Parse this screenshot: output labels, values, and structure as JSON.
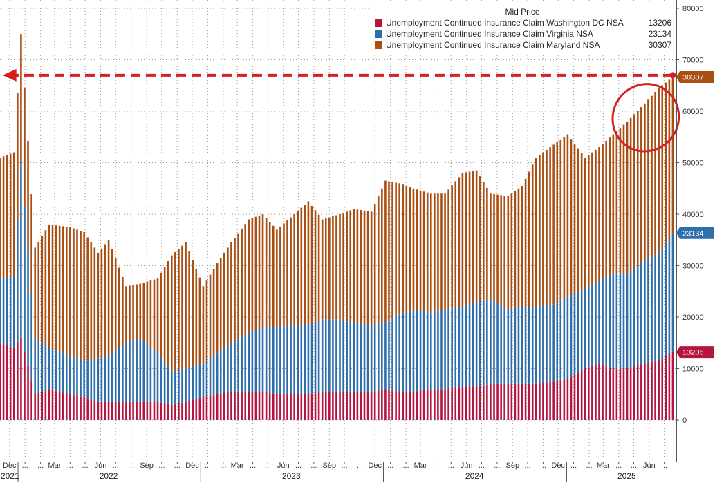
{
  "chart_data": {
    "type": "bar",
    "stacked": true,
    "legend": {
      "title": "Mid Price",
      "placement": "top-right",
      "entries": [
        {
          "name": "Unemployment Continued Insurance Claim Washington DC NSA",
          "value": "13206",
          "color": "#b4163f"
        },
        {
          "name": "Unemployment Continued Insurance Claim Virginia NSA",
          "value": "23134",
          "color": "#2f6ead"
        },
        {
          "name": "Unemployment Continued Insurance Claim Maryland NSA",
          "value": "30307",
          "color": "#a94f13"
        }
      ]
    },
    "last_value_badges": [
      {
        "label": "30307",
        "value": 66647,
        "color": "#a94f13"
      },
      {
        "label": "23134",
        "value": 36340,
        "color": "#2f6ead"
      },
      {
        "label": "13206",
        "value": 13206,
        "color": "#b4163f"
      }
    ],
    "y_axis": {
      "position": "right",
      "ylim": [
        -10000,
        82000
      ],
      "ticks": [
        0,
        10000,
        20000,
        30000,
        40000,
        50000,
        60000,
        70000,
        80000
      ],
      "tick_labels": [
        "0",
        "10000",
        "20000",
        "30000",
        "40000",
        "50000",
        "60000",
        "70000",
        "80000"
      ]
    },
    "x_axis": {
      "start": "2021-11-26",
      "end": "2025-08-08",
      "month_ticks": [
        {
          "date": "2021-12-15",
          "label": "Dec"
        },
        {
          "date": "2022-01-15",
          "label": "..."
        },
        {
          "date": "2022-02-15",
          "label": "..."
        },
        {
          "date": "2022-03-15",
          "label": "Mar"
        },
        {
          "date": "2022-04-15",
          "label": "..."
        },
        {
          "date": "2022-05-15",
          "label": "..."
        },
        {
          "date": "2022-06-15",
          "label": "Jun"
        },
        {
          "date": "2022-07-15",
          "label": "..."
        },
        {
          "date": "2022-08-15",
          "label": "..."
        },
        {
          "date": "2022-09-15",
          "label": "Sep"
        },
        {
          "date": "2022-10-15",
          "label": "..."
        },
        {
          "date": "2022-11-15",
          "label": "..."
        },
        {
          "date": "2022-12-15",
          "label": "Dec"
        },
        {
          "date": "2023-01-15",
          "label": "..."
        },
        {
          "date": "2023-02-15",
          "label": "..."
        },
        {
          "date": "2023-03-15",
          "label": "Mar"
        },
        {
          "date": "2023-04-15",
          "label": "..."
        },
        {
          "date": "2023-05-15",
          "label": "..."
        },
        {
          "date": "2023-06-15",
          "label": "Jun"
        },
        {
          "date": "2023-07-15",
          "label": "..."
        },
        {
          "date": "2023-08-15",
          "label": "..."
        },
        {
          "date": "2023-09-15",
          "label": "Sep"
        },
        {
          "date": "2023-10-15",
          "label": "..."
        },
        {
          "date": "2023-11-15",
          "label": "..."
        },
        {
          "date": "2023-12-15",
          "label": "Dec"
        },
        {
          "date": "2024-01-15",
          "label": "..."
        },
        {
          "date": "2024-02-15",
          "label": "..."
        },
        {
          "date": "2024-03-15",
          "label": "Mar"
        },
        {
          "date": "2024-04-15",
          "label": "..."
        },
        {
          "date": "2024-05-15",
          "label": "..."
        },
        {
          "date": "2024-06-15",
          "label": "Jun"
        },
        {
          "date": "2024-07-15",
          "label": "..."
        },
        {
          "date": "2024-08-15",
          "label": "..."
        },
        {
          "date": "2024-09-15",
          "label": "Sep"
        },
        {
          "date": "2024-10-15",
          "label": "..."
        },
        {
          "date": "2024-11-15",
          "label": "..."
        },
        {
          "date": "2024-12-15",
          "label": "Dec"
        },
        {
          "date": "2025-01-15",
          "label": "..."
        },
        {
          "date": "2025-02-15",
          "label": "..."
        },
        {
          "date": "2025-03-15",
          "label": "Mar"
        },
        {
          "date": "2025-04-15",
          "label": "..."
        },
        {
          "date": "2025-05-15",
          "label": "..."
        },
        {
          "date": "2025-06-15",
          "label": "Jun"
        },
        {
          "date": "2025-07-15",
          "label": "..."
        }
      ],
      "year_labels": [
        {
          "date": "2021-11-27",
          "label": "2021"
        },
        {
          "date": "2022-07-01",
          "label": "2022"
        },
        {
          "date": "2023-07-01",
          "label": "2023"
        },
        {
          "date": "2024-07-01",
          "label": "2024"
        },
        {
          "date": "2025-05-01",
          "label": "2025"
        }
      ],
      "year_boundaries": [
        "2022-01-01",
        "2023-01-01",
        "2024-01-01",
        "2025-01-01"
      ]
    },
    "grid": {
      "horizontal": true,
      "vertical": true,
      "style": "dotted"
    },
    "annotations": [
      {
        "type": "dashed-arrow",
        "from_date": "2025-08-01",
        "to_date": "2021-12-01",
        "y": 67000,
        "color": "#d42020"
      },
      {
        "type": "ellipse",
        "date_from": "2025-04-01",
        "date_to": "2025-08-15",
        "y_from": 48500,
        "y_to": 69000,
        "color": "#d42020"
      }
    ],
    "series_weekly": {
      "date_start": "2021-11-26",
      "interval_days": 7,
      "x": [
        "2021-11-26",
        "2021-12-03",
        "2021-12-10",
        "2021-12-17",
        "2021-12-24",
        "2021-12-31",
        "2022-01-07",
        "2022-01-14",
        "2022-01-21",
        "2022-01-28",
        "2022-02-04",
        "2022-02-11",
        "2022-02-18",
        "2022-02-25",
        "2022-03-04",
        "2022-03-11",
        "2022-03-18",
        "2022-03-25",
        "2022-04-01",
        "2022-04-08",
        "2022-04-15",
        "2022-04-22",
        "2022-04-29",
        "2022-05-06",
        "2022-05-13",
        "2022-05-20",
        "2022-05-27",
        "2022-06-03",
        "2022-06-10",
        "2022-06-17",
        "2022-06-24",
        "2022-07-01",
        "2022-07-08",
        "2022-07-15",
        "2022-07-22",
        "2022-07-29",
        "2022-08-05",
        "2022-08-12",
        "2022-08-19",
        "2022-08-26",
        "2022-09-02",
        "2022-09-09",
        "2022-09-16",
        "2022-09-23",
        "2022-09-30",
        "2022-10-07",
        "2022-10-14",
        "2022-10-21",
        "2022-10-28",
        "2022-11-04",
        "2022-11-11",
        "2022-11-18",
        "2022-11-25",
        "2022-12-02",
        "2022-12-09",
        "2022-12-16",
        "2022-12-23",
        "2022-12-30",
        "2023-01-06",
        "2023-01-13",
        "2023-01-20",
        "2023-01-27",
        "2023-02-03",
        "2023-02-10",
        "2023-02-17",
        "2023-02-24",
        "2023-03-03",
        "2023-03-10",
        "2023-03-17",
        "2023-03-24",
        "2023-03-31",
        "2023-04-07",
        "2023-04-14",
        "2023-04-21",
        "2023-04-28",
        "2023-05-05",
        "2023-05-12",
        "2023-05-19",
        "2023-05-26",
        "2023-06-02",
        "2023-06-09",
        "2023-06-16",
        "2023-06-23",
        "2023-06-30",
        "2023-07-07",
        "2023-07-14",
        "2023-07-21",
        "2023-07-28",
        "2023-08-04",
        "2023-08-11",
        "2023-08-18",
        "2023-08-25",
        "2023-09-01",
        "2023-09-08",
        "2023-09-15",
        "2023-09-22",
        "2023-09-29",
        "2023-10-06",
        "2023-10-13",
        "2023-10-20",
        "2023-10-27",
        "2023-11-03",
        "2023-11-10",
        "2023-11-17",
        "2023-11-24",
        "2023-12-01",
        "2023-12-08",
        "2023-12-15",
        "2023-12-22",
        "2023-12-29",
        "2024-01-05",
        "2024-01-12",
        "2024-01-19",
        "2024-01-26",
        "2024-02-02",
        "2024-02-09",
        "2024-02-16",
        "2024-02-23",
        "2024-03-01",
        "2024-03-08",
        "2024-03-15",
        "2024-03-22",
        "2024-03-29",
        "2024-04-05",
        "2024-04-12",
        "2024-04-19",
        "2024-04-26",
        "2024-05-03",
        "2024-05-10",
        "2024-05-17",
        "2024-05-24",
        "2024-05-31",
        "2024-06-07",
        "2024-06-14",
        "2024-06-21",
        "2024-06-28",
        "2024-07-05",
        "2024-07-12",
        "2024-07-19",
        "2024-07-26",
        "2024-08-02",
        "2024-08-09",
        "2024-08-16",
        "2024-08-23",
        "2024-08-30",
        "2024-09-06",
        "2024-09-13",
        "2024-09-20",
        "2024-09-27",
        "2024-10-04",
        "2024-10-11",
        "2024-10-18",
        "2024-10-25",
        "2024-11-01",
        "2024-11-08",
        "2024-11-15",
        "2024-11-22",
        "2024-11-29",
        "2024-12-06",
        "2024-12-13",
        "2024-12-20",
        "2024-12-27",
        "2025-01-03",
        "2025-01-10",
        "2025-01-17",
        "2025-01-24",
        "2025-01-31",
        "2025-02-07",
        "2025-02-14",
        "2025-02-21",
        "2025-02-28",
        "2025-03-07",
        "2025-03-14",
        "2025-03-21",
        "2025-03-28",
        "2025-04-04",
        "2025-04-11",
        "2025-04-18",
        "2025-04-25",
        "2025-05-02",
        "2025-05-09",
        "2025-05-16",
        "2025-05-23",
        "2025-05-30",
        "2025-06-06",
        "2025-06-13",
        "2025-06-20",
        "2025-06-27",
        "2025-07-04",
        "2025-07-11",
        "2025-07-18",
        "2025-07-25",
        "2025-08-01"
      ],
      "total_x": [
        "2021-11-26",
        "2021-12-24",
        "2022-01-07",
        "2022-02-04",
        "2022-03-04",
        "2022-04-15",
        "2022-05-13",
        "2022-06-10",
        "2022-07-01",
        "2022-08-05",
        "2022-09-02",
        "2022-10-07",
        "2022-11-04",
        "2022-12-02",
        "2023-01-06",
        "2023-02-03",
        "2023-03-03",
        "2023-04-07",
        "2023-05-05",
        "2023-06-02",
        "2023-07-07",
        "2023-08-04",
        "2023-09-01",
        "2023-10-06",
        "2023-11-03",
        "2023-12-08",
        "2024-01-05",
        "2024-02-02",
        "2024-03-01",
        "2024-04-05",
        "2024-05-03",
        "2024-06-07",
        "2024-07-05",
        "2024-08-02",
        "2024-09-06",
        "2024-10-04",
        "2024-11-01",
        "2024-12-06",
        "2025-01-03",
        "2025-02-07",
        "2025-03-07",
        "2025-04-04",
        "2025-05-02",
        "2025-06-06",
        "2025-07-04",
        "2025-08-01"
      ],
      "total_y": [
        51000,
        52000,
        75000,
        33500,
        38000,
        37500,
        36500,
        32500,
        35000,
        26000,
        26500,
        27500,
        32000,
        34500,
        26000,
        30500,
        34500,
        39000,
        40000,
        37000,
        40000,
        42500,
        39000,
        40000,
        41000,
        40500,
        46500,
        46000,
        45000,
        44000,
        44000,
        48000,
        48500,
        44000,
        43500,
        45500,
        51000,
        53500,
        55500,
        51000,
        53000,
        55500,
        58000,
        61500,
        64500,
        66647
      ],
      "virginia_x": [
        "2021-11-26",
        "2021-12-24",
        "2022-01-07",
        "2022-02-04",
        "2022-03-04",
        "2022-04-15",
        "2022-05-13",
        "2022-06-10",
        "2022-07-01",
        "2022-08-05",
        "2022-09-02",
        "2022-10-07",
        "2022-11-04",
        "2022-12-02",
        "2023-01-06",
        "2023-02-03",
        "2023-03-03",
        "2023-04-07",
        "2023-05-05",
        "2023-06-02",
        "2023-07-07",
        "2023-08-04",
        "2023-09-01",
        "2023-10-06",
        "2023-11-03",
        "2023-12-08",
        "2024-01-05",
        "2024-02-02",
        "2024-03-01",
        "2024-04-05",
        "2024-05-03",
        "2024-06-07",
        "2024-07-05",
        "2024-08-02",
        "2024-09-06",
        "2024-10-04",
        "2024-11-01",
        "2024-12-06",
        "2025-01-03",
        "2025-02-07",
        "2025-03-07",
        "2025-04-04",
        "2025-05-02",
        "2025-06-06",
        "2025-07-04",
        "2025-08-01"
      ],
      "virginia_y": [
        27500,
        28000,
        50000,
        16000,
        14000,
        12500,
        11500,
        12000,
        12500,
        15000,
        16000,
        13000,
        9500,
        10000,
        11000,
        13000,
        15000,
        17000,
        18000,
        18000,
        18500,
        18500,
        19500,
        19500,
        19000,
        18500,
        19000,
        20500,
        21500,
        21000,
        21500,
        22000,
        23000,
        23500,
        21500,
        22000,
        22000,
        22500,
        24000,
        25500,
        27000,
        28500,
        28500,
        31000,
        32500,
        36340
      ],
      "dc_x": [
        "2021-11-26",
        "2021-12-24",
        "2022-01-07",
        "2022-02-04",
        "2022-03-04",
        "2022-04-15",
        "2022-05-13",
        "2022-06-10",
        "2022-07-01",
        "2022-08-05",
        "2022-09-02",
        "2022-10-07",
        "2022-11-04",
        "2022-12-02",
        "2023-01-06",
        "2023-02-03",
        "2023-03-03",
        "2023-04-07",
        "2023-05-05",
        "2023-06-02",
        "2023-07-07",
        "2023-08-04",
        "2023-09-01",
        "2023-10-06",
        "2023-11-03",
        "2023-12-08",
        "2024-01-05",
        "2024-02-02",
        "2024-03-01",
        "2024-04-05",
        "2024-05-03",
        "2024-06-07",
        "2024-07-05",
        "2024-08-02",
        "2024-09-06",
        "2024-10-04",
        "2024-11-01",
        "2024-12-06",
        "2025-01-03",
        "2025-02-07",
        "2025-03-07",
        "2025-04-04",
        "2025-05-02",
        "2025-06-06",
        "2025-07-04",
        "2025-08-01"
      ],
      "dc_y": [
        15000,
        14000,
        16000,
        5000,
        6000,
        5000,
        4500,
        3500,
        3500,
        3500,
        3500,
        3500,
        3000,
        3500,
        4500,
        5000,
        5500,
        5500,
        5500,
        5000,
        5000,
        5000,
        5500,
        5500,
        5500,
        5500,
        6000,
        5500,
        5500,
        6000,
        6000,
        6500,
        6500,
        7000,
        7000,
        7000,
        7000,
        7500,
        8000,
        10000,
        11000,
        10000,
        10000,
        11000,
        11500,
        13206
      ]
    }
  }
}
